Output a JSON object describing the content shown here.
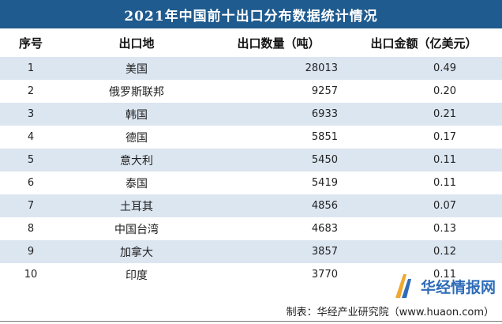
{
  "title": "2021年中国前十出口分布数据统计情况",
  "columns": [
    "序号",
    "出口地",
    "出口数量（吨）",
    "出口金额（亿美元）"
  ],
  "rows": [
    {
      "no": "1",
      "place": "美国",
      "qty": "28013",
      "amount": "0.49"
    },
    {
      "no": "2",
      "place": "俄罗斯联邦",
      "qty": "9257",
      "amount": "0.20"
    },
    {
      "no": "3",
      "place": "韩国",
      "qty": "6933",
      "amount": "0.21"
    },
    {
      "no": "4",
      "place": "德国",
      "qty": "5851",
      "amount": "0.17"
    },
    {
      "no": "5",
      "place": "意大利",
      "qty": "5450",
      "amount": "0.11"
    },
    {
      "no": "6",
      "place": "泰国",
      "qty": "5419",
      "amount": "0.11"
    },
    {
      "no": "7",
      "place": "土耳其",
      "qty": "4856",
      "amount": "0.07"
    },
    {
      "no": "8",
      "place": "中国台湾",
      "qty": "4683",
      "amount": "0.13"
    },
    {
      "no": "9",
      "place": "加拿大",
      "qty": "3857",
      "amount": "0.12"
    },
    {
      "no": "10",
      "place": "印度",
      "qty": "3770",
      "amount": "0.11"
    }
  ],
  "source": "制表：华经产业研究院（www.huaon.com）",
  "brand": {
    "name": "华经情报网",
    "icon": "brand-logo-icon"
  },
  "colors": {
    "header_bg": "#1f5b8e",
    "stripe": "#dce6f1",
    "brand": "#2e6cb8"
  }
}
